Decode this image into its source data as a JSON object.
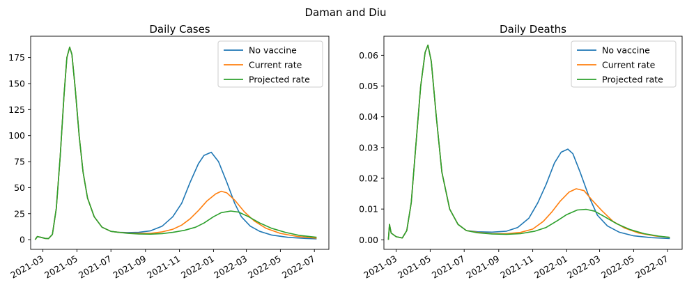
{
  "figure": {
    "suptitle": "Daman and Diu"
  },
  "colors": {
    "no_vaccine": "#1f77b4",
    "current_rate": "#ff7f0e",
    "projected_rate": "#2ca02c"
  },
  "chart_data": [
    {
      "type": "line",
      "title": "Daily Cases",
      "xlabel": "",
      "ylabel": "",
      "x_axis": "date",
      "xlim": [
        "2021-02-07",
        "2022-07-27"
      ],
      "ylim": [
        -9.3,
        195.5
      ],
      "xticks": [
        "2021-03-01",
        "2021-05-01",
        "2021-07-01",
        "2021-09-01",
        "2021-11-01",
        "2022-01-01",
        "2022-03-01",
        "2022-05-01",
        "2022-07-01"
      ],
      "xtick_labels": [
        "2021-03",
        "2021-05",
        "2021-07",
        "2021-09",
        "2021-11",
        "2022-01",
        "2022-03",
        "2022-05",
        "2022-07"
      ],
      "yticks": [
        0,
        25,
        50,
        75,
        100,
        125,
        150,
        175
      ],
      "ytick_labels": [
        "0",
        "25",
        "50",
        "75",
        "100",
        "125",
        "150",
        "175"
      ],
      "legend": "top-right",
      "grid": false,
      "series": [
        {
          "name": "No vaccine",
          "color": "#1f77b4",
          "points": [
            [
              "2021-02-15",
              0
            ],
            [
              "2021-02-19",
              3
            ],
            [
              "2021-02-25",
              2.3
            ],
            [
              "2021-03-05",
              1.2
            ],
            [
              "2021-03-11",
              1
            ],
            [
              "2021-03-18",
              5
            ],
            [
              "2021-03-25",
              30
            ],
            [
              "2021-04-01",
              80
            ],
            [
              "2021-04-08",
              140
            ],
            [
              "2021-04-13",
              175
            ],
            [
              "2021-04-18",
              185
            ],
            [
              "2021-04-22",
              178
            ],
            [
              "2021-04-28",
              145
            ],
            [
              "2021-05-05",
              100
            ],
            [
              "2021-05-12",
              65
            ],
            [
              "2021-05-20",
              40
            ],
            [
              "2021-06-01",
              22
            ],
            [
              "2021-06-15",
              12
            ],
            [
              "2021-07-01",
              8
            ],
            [
              "2021-07-15",
              7
            ],
            [
              "2021-08-01",
              6.8
            ],
            [
              "2021-08-20",
              7
            ],
            [
              "2021-09-10",
              8.5
            ],
            [
              "2021-10-01",
              13
            ],
            [
              "2021-10-20",
              22
            ],
            [
              "2021-11-05",
              35
            ],
            [
              "2021-11-20",
              55
            ],
            [
              "2021-12-05",
              73
            ],
            [
              "2021-12-15",
              81
            ],
            [
              "2021-12-28",
              84
            ],
            [
              "2022-01-10",
              75
            ],
            [
              "2022-01-25",
              55
            ],
            [
              "2022-02-08",
              35
            ],
            [
              "2022-02-20",
              22
            ],
            [
              "2022-03-08",
              13
            ],
            [
              "2022-03-25",
              8
            ],
            [
              "2022-04-15",
              4.5
            ],
            [
              "2022-05-15",
              2.2
            ],
            [
              "2022-06-15",
              1.2
            ],
            [
              "2022-07-05",
              0.8
            ]
          ]
        },
        {
          "name": "Current rate",
          "color": "#ff7f0e",
          "points": [
            [
              "2021-02-15",
              0
            ],
            [
              "2021-02-19",
              3
            ],
            [
              "2021-02-25",
              2.3
            ],
            [
              "2021-03-05",
              1.2
            ],
            [
              "2021-03-11",
              1
            ],
            [
              "2021-03-18",
              5
            ],
            [
              "2021-03-25",
              30
            ],
            [
              "2021-04-01",
              80
            ],
            [
              "2021-04-08",
              140
            ],
            [
              "2021-04-13",
              175
            ],
            [
              "2021-04-18",
              185
            ],
            [
              "2021-04-22",
              178
            ],
            [
              "2021-04-28",
              145
            ],
            [
              "2021-05-05",
              100
            ],
            [
              "2021-05-12",
              65
            ],
            [
              "2021-05-20",
              40
            ],
            [
              "2021-06-01",
              22
            ],
            [
              "2021-06-15",
              12
            ],
            [
              "2021-07-01",
              8
            ],
            [
              "2021-07-15",
              7
            ],
            [
              "2021-08-01",
              6.3
            ],
            [
              "2021-08-20",
              6
            ],
            [
              "2021-09-10",
              6
            ],
            [
              "2021-10-01",
              7.5
            ],
            [
              "2021-10-20",
              10
            ],
            [
              "2021-11-05",
              14
            ],
            [
              "2021-11-20",
              20
            ],
            [
              "2021-12-05",
              28
            ],
            [
              "2021-12-20",
              37
            ],
            [
              "2022-01-05",
              44
            ],
            [
              "2022-01-15",
              46.5
            ],
            [
              "2022-01-25",
              45
            ],
            [
              "2022-02-08",
              38
            ],
            [
              "2022-02-25",
              27
            ],
            [
              "2022-03-15",
              18
            ],
            [
              "2022-04-05",
              11
            ],
            [
              "2022-05-01",
              6
            ],
            [
              "2022-06-01",
              3
            ],
            [
              "2022-07-05",
              1.5
            ]
          ]
        },
        {
          "name": "Projected rate",
          "color": "#2ca02c",
          "points": [
            [
              "2021-02-15",
              0
            ],
            [
              "2021-02-19",
              3
            ],
            [
              "2021-02-25",
              2.3
            ],
            [
              "2021-03-05",
              1.2
            ],
            [
              "2021-03-11",
              1
            ],
            [
              "2021-03-18",
              5
            ],
            [
              "2021-03-25",
              30
            ],
            [
              "2021-04-01",
              80
            ],
            [
              "2021-04-08",
              140
            ],
            [
              "2021-04-13",
              175
            ],
            [
              "2021-04-18",
              185
            ],
            [
              "2021-04-22",
              178
            ],
            [
              "2021-04-28",
              145
            ],
            [
              "2021-05-05",
              100
            ],
            [
              "2021-05-12",
              65
            ],
            [
              "2021-05-20",
              40
            ],
            [
              "2021-06-01",
              22
            ],
            [
              "2021-06-15",
              12
            ],
            [
              "2021-07-01",
              8
            ],
            [
              "2021-07-15",
              7
            ],
            [
              "2021-08-01",
              6
            ],
            [
              "2021-08-20",
              5.5
            ],
            [
              "2021-09-10",
              5.3
            ],
            [
              "2021-10-01",
              5.8
            ],
            [
              "2021-10-20",
              7
            ],
            [
              "2021-11-10",
              9
            ],
            [
              "2021-11-30",
              12
            ],
            [
              "2021-12-15",
              16
            ],
            [
              "2022-01-01",
              22
            ],
            [
              "2022-01-15",
              26
            ],
            [
              "2022-02-01",
              27.5
            ],
            [
              "2022-02-15",
              26.5
            ],
            [
              "2022-03-05",
              22
            ],
            [
              "2022-03-25",
              16
            ],
            [
              "2022-04-15",
              11
            ],
            [
              "2022-05-10",
              7
            ],
            [
              "2022-06-05",
              4
            ],
            [
              "2022-07-05",
              2.3
            ]
          ]
        }
      ]
    },
    {
      "type": "line",
      "title": "Daily Deaths",
      "xlabel": "",
      "ylabel": "",
      "x_axis": "date",
      "xlim": [
        "2021-02-07",
        "2022-07-27"
      ],
      "ylim": [
        -0.0031,
        0.0662
      ],
      "xticks": [
        "2021-03-01",
        "2021-05-01",
        "2021-07-01",
        "2021-09-01",
        "2021-11-01",
        "2022-01-01",
        "2022-03-01",
        "2022-05-01",
        "2022-07-01"
      ],
      "xtick_labels": [
        "2021-03",
        "2021-05",
        "2021-07",
        "2021-09",
        "2021-11",
        "2022-01",
        "2022-03",
        "2022-05",
        "2022-07"
      ],
      "yticks": [
        0,
        0.01,
        0.02,
        0.03,
        0.04,
        0.05,
        0.06
      ],
      "ytick_labels": [
        "0.00",
        "0.01",
        "0.02",
        "0.03",
        "0.04",
        "0.05",
        "0.06"
      ],
      "legend": "top-right",
      "grid": false,
      "series": [
        {
          "name": "No vaccine",
          "color": "#1f77b4",
          "points": [
            [
              "2021-02-15",
              0
            ],
            [
              "2021-02-17",
              0.005
            ],
            [
              "2021-02-20",
              0.0022
            ],
            [
              "2021-03-01",
              0.001
            ],
            [
              "2021-03-12",
              0.0006
            ],
            [
              "2021-03-20",
              0.003
            ],
            [
              "2021-03-28",
              0.012
            ],
            [
              "2021-04-05",
              0.03
            ],
            [
              "2021-04-14",
              0.05
            ],
            [
              "2021-04-22",
              0.061
            ],
            [
              "2021-04-27",
              0.0633
            ],
            [
              "2021-05-03",
              0.058
            ],
            [
              "2021-05-12",
              0.04
            ],
            [
              "2021-05-22",
              0.022
            ],
            [
              "2021-06-05",
              0.01
            ],
            [
              "2021-06-20",
              0.005
            ],
            [
              "2021-07-05",
              0.003
            ],
            [
              "2021-07-25",
              0.0026
            ],
            [
              "2021-08-20",
              0.0025
            ],
            [
              "2021-09-15",
              0.0028
            ],
            [
              "2021-10-05",
              0.004
            ],
            [
              "2021-10-25",
              0.007
            ],
            [
              "2021-11-10",
              0.012
            ],
            [
              "2021-11-25",
              0.018
            ],
            [
              "2021-12-10",
              0.025
            ],
            [
              "2021-12-22",
              0.0285
            ],
            [
              "2022-01-03",
              0.0295
            ],
            [
              "2022-01-12",
              0.028
            ],
            [
              "2022-01-25",
              0.022
            ],
            [
              "2022-02-10",
              0.014
            ],
            [
              "2022-02-25",
              0.008
            ],
            [
              "2022-03-15",
              0.0045
            ],
            [
              "2022-04-05",
              0.0025
            ],
            [
              "2022-05-01",
              0.0013
            ],
            [
              "2022-06-01",
              0.0007
            ],
            [
              "2022-07-05",
              0.0004
            ]
          ]
        },
        {
          "name": "Current rate",
          "color": "#ff7f0e",
          "points": [
            [
              "2021-02-15",
              0
            ],
            [
              "2021-02-17",
              0.005
            ],
            [
              "2021-02-20",
              0.0022
            ],
            [
              "2021-03-01",
              0.001
            ],
            [
              "2021-03-12",
              0.0006
            ],
            [
              "2021-03-20",
              0.003
            ],
            [
              "2021-03-28",
              0.012
            ],
            [
              "2021-04-05",
              0.03
            ],
            [
              "2021-04-14",
              0.05
            ],
            [
              "2021-04-22",
              0.061
            ],
            [
              "2021-04-27",
              0.0633
            ],
            [
              "2021-05-03",
              0.058
            ],
            [
              "2021-05-12",
              0.04
            ],
            [
              "2021-05-22",
              0.022
            ],
            [
              "2021-06-05",
              0.01
            ],
            [
              "2021-06-20",
              0.005
            ],
            [
              "2021-07-05",
              0.003
            ],
            [
              "2021-07-25",
              0.0024
            ],
            [
              "2021-08-20",
              0.002
            ],
            [
              "2021-09-15",
              0.002
            ],
            [
              "2021-10-10",
              0.0024
            ],
            [
              "2021-11-01",
              0.0035
            ],
            [
              "2021-11-20",
              0.006
            ],
            [
              "2021-12-05",
              0.009
            ],
            [
              "2021-12-20",
              0.0125
            ],
            [
              "2022-01-05",
              0.0155
            ],
            [
              "2022-01-18",
              0.0166
            ],
            [
              "2022-02-01",
              0.016
            ],
            [
              "2022-02-15",
              0.013
            ],
            [
              "2022-03-05",
              0.0095
            ],
            [
              "2022-03-25",
              0.006
            ],
            [
              "2022-04-15",
              0.0038
            ],
            [
              "2022-05-10",
              0.0022
            ],
            [
              "2022-06-10",
              0.0012
            ],
            [
              "2022-07-05",
              0.0008
            ]
          ]
        },
        {
          "name": "Projected rate",
          "color": "#2ca02c",
          "points": [
            [
              "2021-02-15",
              0
            ],
            [
              "2021-02-17",
              0.005
            ],
            [
              "2021-02-20",
              0.0022
            ],
            [
              "2021-03-01",
              0.001
            ],
            [
              "2021-03-12",
              0.0006
            ],
            [
              "2021-03-20",
              0.003
            ],
            [
              "2021-03-28",
              0.012
            ],
            [
              "2021-04-05",
              0.03
            ],
            [
              "2021-04-14",
              0.05
            ],
            [
              "2021-04-22",
              0.061
            ],
            [
              "2021-04-27",
              0.0633
            ],
            [
              "2021-05-03",
              0.058
            ],
            [
              "2021-05-12",
              0.04
            ],
            [
              "2021-05-22",
              0.022
            ],
            [
              "2021-06-05",
              0.01
            ],
            [
              "2021-06-20",
              0.005
            ],
            [
              "2021-07-05",
              0.003
            ],
            [
              "2021-07-25",
              0.0023
            ],
            [
              "2021-08-20",
              0.0019
            ],
            [
              "2021-09-15",
              0.0018
            ],
            [
              "2021-10-10",
              0.002
            ],
            [
              "2021-11-05",
              0.0028
            ],
            [
              "2021-11-25",
              0.004
            ],
            [
              "2021-12-15",
              0.0062
            ],
            [
              "2022-01-01",
              0.0082
            ],
            [
              "2022-01-20",
              0.0097
            ],
            [
              "2022-02-05",
              0.0099
            ],
            [
              "2022-02-20",
              0.0093
            ],
            [
              "2022-03-10",
              0.0075
            ],
            [
              "2022-04-01",
              0.0052
            ],
            [
              "2022-04-25",
              0.0033
            ],
            [
              "2022-05-20",
              0.002
            ],
            [
              "2022-06-15",
              0.0012
            ],
            [
              "2022-07-05",
              0.0008
            ]
          ]
        }
      ]
    }
  ]
}
